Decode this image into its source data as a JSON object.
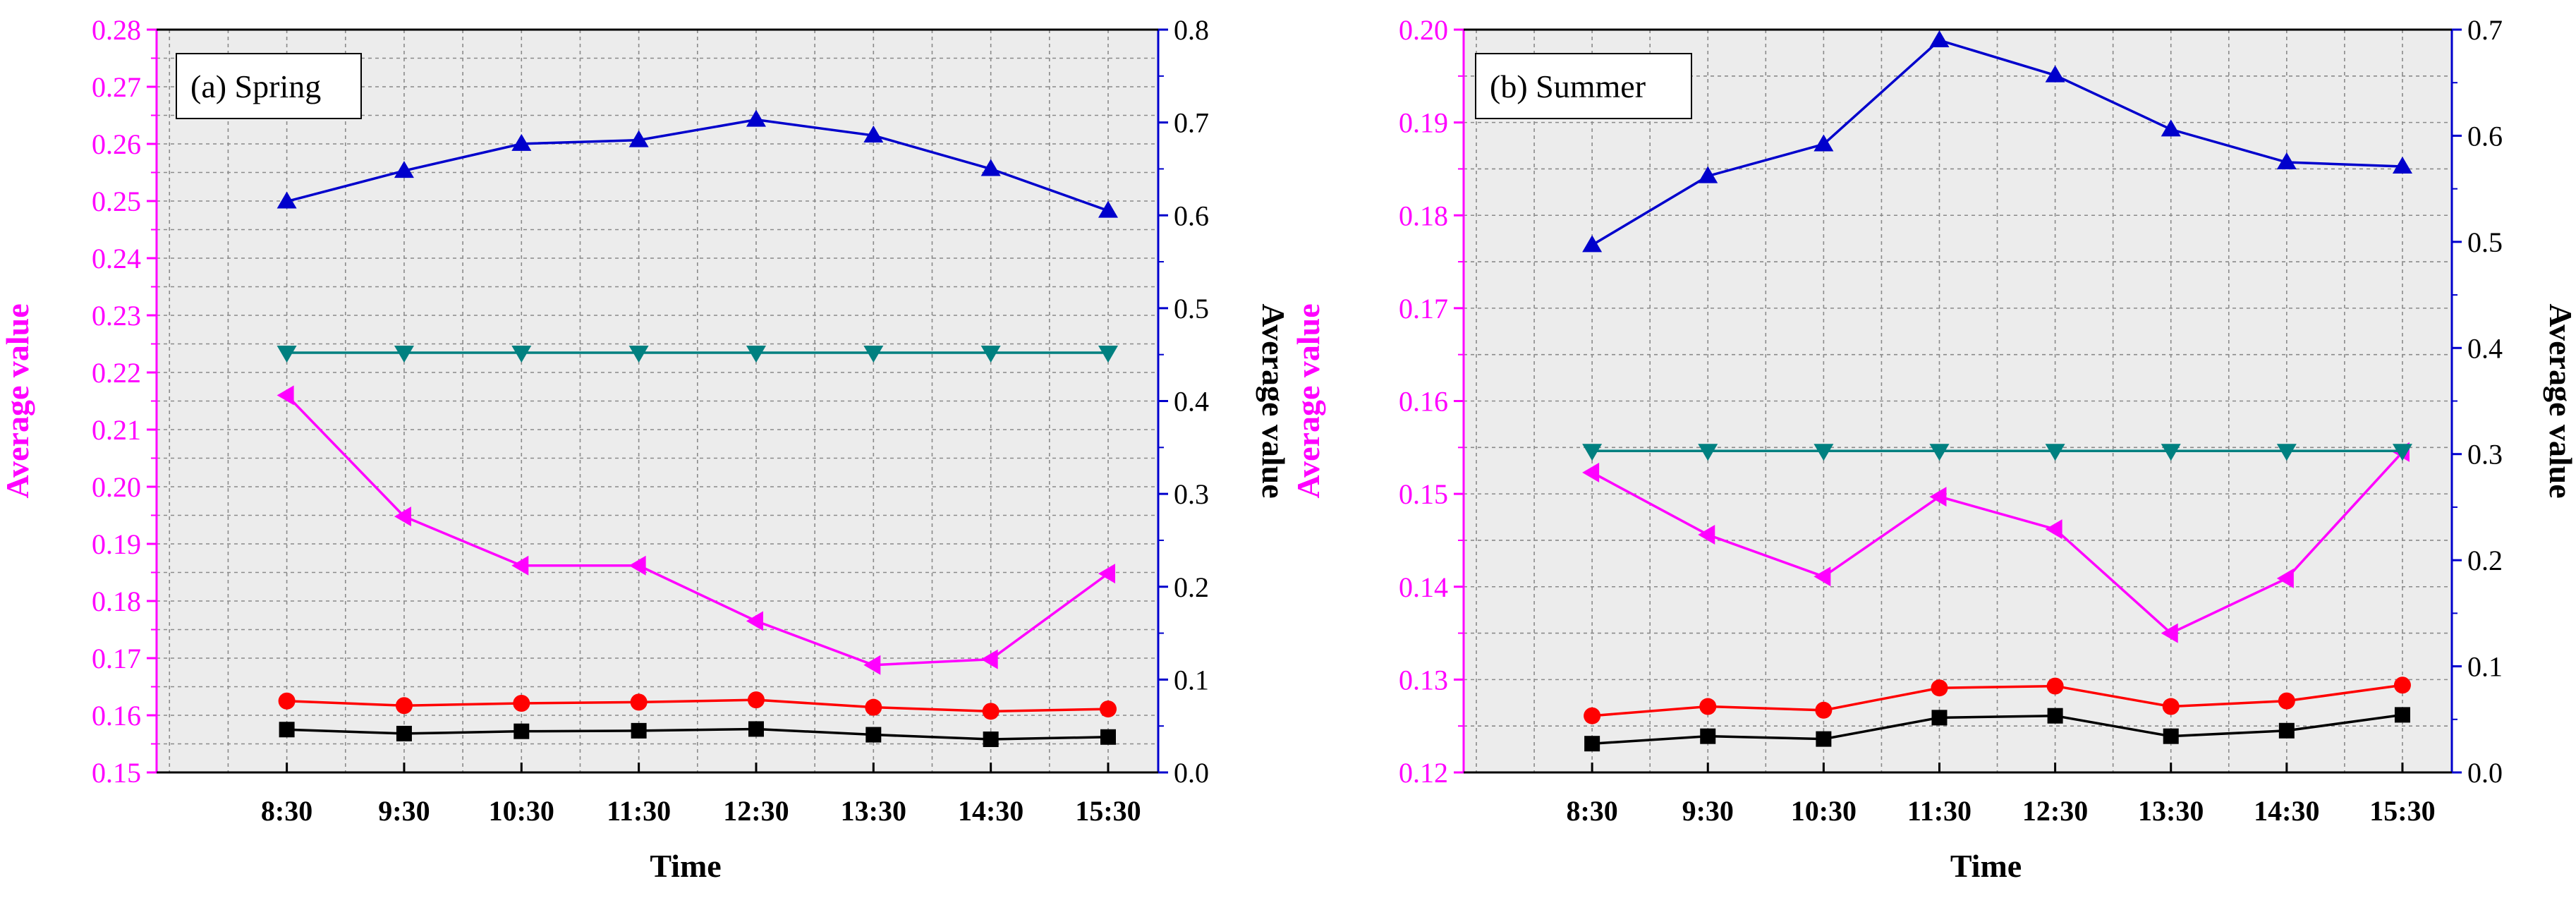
{
  "colors": {
    "left_axis": "#ff00ff",
    "right_axis": "#0000cc",
    "plot_bg": "#ececec",
    "grid": "#8a8a8a"
  },
  "chart_data": [
    {
      "type": "line",
      "panel_label": "(a) Spring",
      "xlabel": "Time",
      "ylabel_left": "Average value",
      "ylabel_right": "Average value",
      "categories": [
        "8:30",
        "9:30",
        "10:30",
        "11:30",
        "12:30",
        "13:30",
        "14:30",
        "15:30"
      ],
      "ylim_left": [
        0.15,
        0.28
      ],
      "yticks_left": [
        "0.15",
        "0.16",
        "0.17",
        "0.18",
        "0.19",
        "0.20",
        "0.21",
        "0.22",
        "0.23",
        "0.24",
        "0.25",
        "0.26",
        "0.27",
        "0.28"
      ],
      "ylim_right": [
        0,
        0.8
      ],
      "yticks_right": [
        "0.0",
        "0.1",
        "0.2",
        "0.3",
        "0.4",
        "0.5",
        "0.6",
        "0.7",
        "0.8"
      ],
      "grid": true,
      "series": [
        {
          "name": "series-black",
          "axis": "left",
          "color": "#000000",
          "marker": "square",
          "values": [
            0.1575,
            0.1568,
            0.1572,
            0.1573,
            0.1576,
            0.1566,
            0.1558,
            0.1562
          ]
        },
        {
          "name": "series-red",
          "axis": "left",
          "color": "#ff0000",
          "marker": "circle",
          "values": [
            0.1625,
            0.1617,
            0.1621,
            0.1623,
            0.1627,
            0.1614,
            0.1607,
            0.1611
          ]
        },
        {
          "name": "series-magenta",
          "axis": "left",
          "color": "#ff00ff",
          "marker": "triangle-left",
          "values": [
            0.216,
            0.1948,
            0.1862,
            0.1862,
            0.1765,
            0.1688,
            0.1698,
            0.1848
          ]
        },
        {
          "name": "series-teal",
          "axis": "right",
          "color": "#008080",
          "marker": "triangle-down",
          "values": [
            0.452,
            0.452,
            0.452,
            0.452,
            0.452,
            0.452,
            0.452,
            0.452
          ]
        },
        {
          "name": "series-blue",
          "axis": "right",
          "color": "#0000cc",
          "marker": "triangle-up",
          "values": [
            0.615,
            0.648,
            0.677,
            0.681,
            0.703,
            0.686,
            0.65,
            0.605
          ]
        }
      ]
    },
    {
      "type": "line",
      "panel_label": "(b) Summer",
      "xlabel": "Time",
      "ylabel_left": "Average value",
      "ylabel_right": "Average value",
      "categories": [
        "8:30",
        "9:30",
        "10:30",
        "11:30",
        "12:30",
        "13:30",
        "14:30",
        "15:30"
      ],
      "ylim_left": [
        0.12,
        0.2
      ],
      "yticks_left": [
        "0.12",
        "0.13",
        "0.14",
        "0.15",
        "0.16",
        "0.17",
        "0.18",
        "0.19",
        "0.20"
      ],
      "ylim_right": [
        0,
        0.7
      ],
      "yticks_right": [
        "0.0",
        "0.1",
        "0.2",
        "0.3",
        "0.4",
        "0.5",
        "0.6",
        "0.7"
      ],
      "grid": true,
      "series": [
        {
          "name": "series-black",
          "axis": "left",
          "color": "#000000",
          "marker": "square",
          "values": [
            0.1231,
            0.1239,
            0.1236,
            0.1259,
            0.1261,
            0.1239,
            0.1245,
            0.1262
          ]
        },
        {
          "name": "series-red",
          "axis": "left",
          "color": "#ff0000",
          "marker": "circle",
          "values": [
            0.1261,
            0.1271,
            0.1267,
            0.1291,
            0.1293,
            0.1271,
            0.1277,
            0.1294
          ]
        },
        {
          "name": "series-magenta",
          "axis": "left",
          "color": "#ff00ff",
          "marker": "triangle-left",
          "values": [
            0.1523,
            0.1456,
            0.1411,
            0.1497,
            0.1462,
            0.135,
            0.1409,
            0.1545
          ]
        },
        {
          "name": "series-teal",
          "axis": "right",
          "color": "#008080",
          "marker": "triangle-down",
          "values": [
            0.303,
            0.303,
            0.303,
            0.303,
            0.303,
            0.303,
            0.303,
            0.303
          ]
        },
        {
          "name": "series-blue",
          "axis": "right",
          "color": "#0000cc",
          "marker": "triangle-up",
          "values": [
            0.497,
            0.562,
            0.592,
            0.69,
            0.657,
            0.606,
            0.575,
            0.571
          ]
        }
      ]
    }
  ]
}
